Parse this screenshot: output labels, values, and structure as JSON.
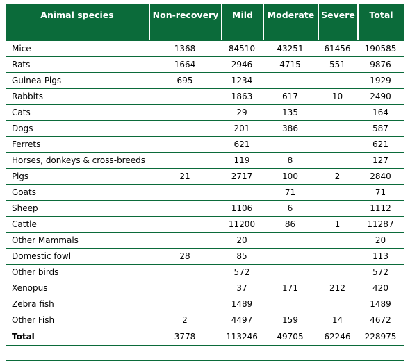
{
  "headers": [
    "Animal species",
    "Non-recovery",
    "Mild",
    "Moderate",
    "Severe",
    "Total"
  ],
  "rows": [
    [
      "Mice",
      "1368",
      "84510",
      "43251",
      "61456",
      "190585"
    ],
    [
      "Rats",
      "1664",
      "2946",
      "4715",
      "551",
      "9876"
    ],
    [
      "Guinea-Pigs",
      "695",
      "1234",
      "",
      "",
      "1929"
    ],
    [
      "Rabbits",
      "",
      "1863",
      "617",
      "10",
      "2490"
    ],
    [
      "Cats",
      "",
      "29",
      "135",
      "",
      "164"
    ],
    [
      "Dogs",
      "",
      "201",
      "386",
      "",
      "587"
    ],
    [
      "Ferrets",
      "",
      "621",
      "",
      "",
      "621"
    ],
    [
      "Horses, donkeys & cross-breeds",
      "",
      "119",
      "8",
      "",
      "127"
    ],
    [
      "Pigs",
      "21",
      "2717",
      "100",
      "2",
      "2840"
    ],
    [
      "Goats",
      "",
      "",
      "71",
      "",
      "71"
    ],
    [
      "Sheep",
      "",
      "1106",
      "6",
      "",
      "1112"
    ],
    [
      "Cattle",
      "",
      "11200",
      "86",
      "1",
      "11287"
    ],
    [
      "Other Mammals",
      "",
      "20",
      "",
      "",
      "20"
    ],
    [
      "Domestic fowl",
      "28",
      "85",
      "",
      "",
      "113"
    ],
    [
      "Other birds",
      "",
      "572",
      "",
      "",
      "572"
    ],
    [
      "Xenopus",
      "",
      "37",
      "171",
      "212",
      "420"
    ],
    [
      "Zebra fish",
      "",
      "1489",
      "",
      "",
      "1489"
    ],
    [
      "Other Fish",
      "2",
      "4497",
      "159",
      "14",
      "4672"
    ]
  ],
  "total": [
    "Total",
    "3778",
    "113246",
    "49705",
    "62246",
    "228975"
  ],
  "colors": {
    "header_bg": "#0b6b3a",
    "header_text": "#ffffff",
    "rule": "#0b6b3a"
  }
}
